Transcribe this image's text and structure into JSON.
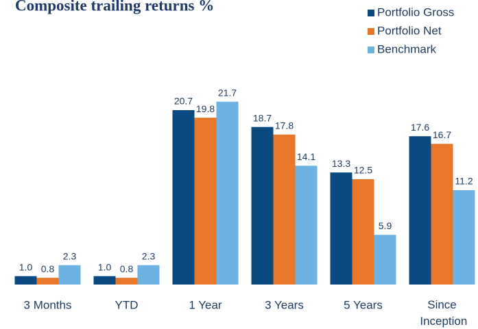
{
  "chart_data": {
    "type": "bar",
    "title": "Composite trailing returns %",
    "categories": [
      "3 Months",
      "YTD",
      "1 Year",
      "3 Years",
      "5 Years",
      "Since Inception"
    ],
    "series": [
      {
        "name": "Portfolio Gross",
        "color": "#0b4a80",
        "values": [
          1.0,
          1.0,
          20.7,
          18.7,
          13.3,
          17.6
        ],
        "value_labels": [
          "1.0",
          "1.0",
          "20.7",
          "18.7",
          "13.3",
          "17.6"
        ]
      },
      {
        "name": "Portfolio Net",
        "color": "#e8772a",
        "values": [
          0.8,
          0.8,
          19.8,
          17.8,
          12.5,
          16.7
        ],
        "value_labels": [
          "0.8",
          "0.8",
          "19.8",
          "17.8",
          "12.5",
          "16.7"
        ]
      },
      {
        "name": "Benchmark",
        "color": "#6cb2e2",
        "values": [
          2.3,
          2.3,
          21.7,
          14.1,
          5.9,
          11.2
        ],
        "value_labels": [
          "2.3",
          "2.3",
          "21.7",
          "14.1",
          "5.9",
          "11.2"
        ]
      }
    ],
    "ylim": [
      0,
      22
    ],
    "legend": "top-right"
  }
}
